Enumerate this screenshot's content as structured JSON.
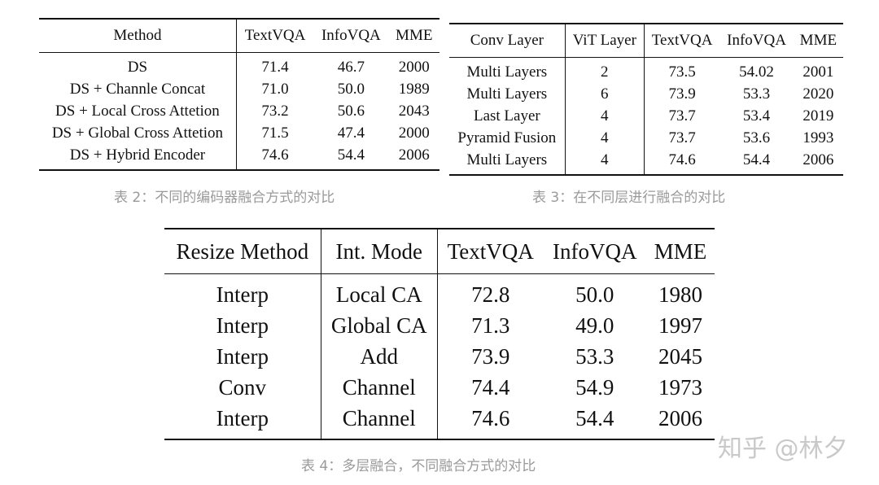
{
  "table2": {
    "headers": [
      "Method",
      "TextVQA",
      "InfoVQA",
      "MME"
    ],
    "rows": [
      [
        "DS",
        "71.4",
        "46.7",
        "2000"
      ],
      [
        "DS + Channle Concat",
        "71.0",
        "50.0",
        "1989"
      ],
      [
        "DS + Local Cross Attetion",
        "73.2",
        "50.6",
        "2043"
      ],
      [
        "DS + Global Cross Attetion",
        "71.5",
        "47.4",
        "2000"
      ],
      [
        "DS + Hybrid Encoder",
        "74.6",
        "54.4",
        "2006"
      ]
    ],
    "caption": "表 2：不同的编码器融合方式的对比"
  },
  "table3": {
    "headers": [
      "Conv Layer",
      "ViT Layer",
      "TextVQA",
      "InfoVQA",
      "MME"
    ],
    "rows": [
      [
        "Multi Layers",
        "2",
        "73.5",
        "54.02",
        "2001"
      ],
      [
        "Multi Layers",
        "6",
        "73.9",
        "53.3",
        "2020"
      ],
      [
        "Last Layer",
        "4",
        "73.7",
        "53.4",
        "2019"
      ],
      [
        "Pyramid Fusion",
        "4",
        "73.7",
        "53.6",
        "1993"
      ],
      [
        "Multi Layers",
        "4",
        "74.6",
        "54.4",
        "2006"
      ]
    ],
    "caption": "表 3：在不同层进行融合的对比"
  },
  "table4": {
    "headers": [
      "Resize Method",
      "Int. Mode",
      "TextVQA",
      "InfoVQA",
      "MME"
    ],
    "rows": [
      [
        "Interp",
        "Local CA",
        "72.8",
        "50.0",
        "1980"
      ],
      [
        "Interp",
        "Global CA",
        "71.3",
        "49.0",
        "1997"
      ],
      [
        "Interp",
        "Add",
        "73.9",
        "53.3",
        "2045"
      ],
      [
        "Conv",
        "Channel",
        "74.4",
        "54.9",
        "1973"
      ],
      [
        "Interp",
        "Channel",
        "74.6",
        "54.4",
        "2006"
      ]
    ],
    "caption": "表 4：多层融合，不同融合方式的对比"
  },
  "watermark": "知乎 @林夕"
}
